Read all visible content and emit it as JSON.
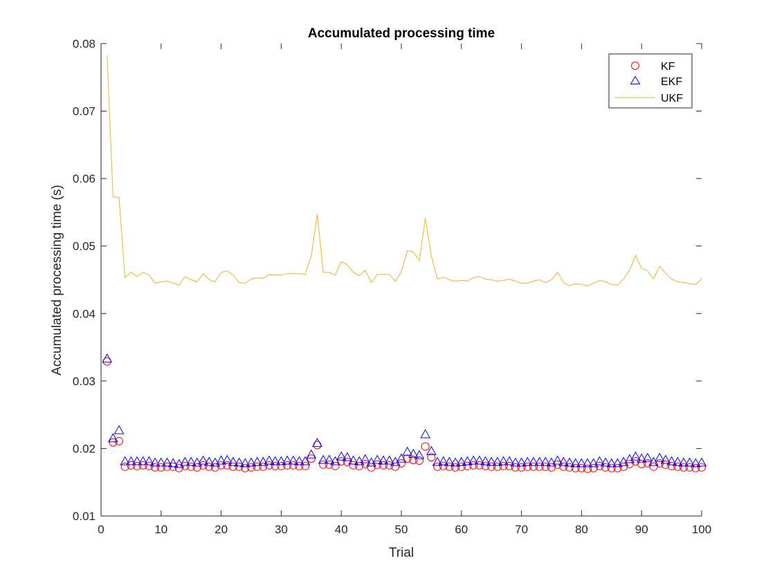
{
  "chart_data": {
    "type": "scatter",
    "title": "Accumulated processing time",
    "xlabel": "Trial",
    "ylabel": "Accumulated processing time (s)",
    "xlim": [
      0,
      100
    ],
    "ylim": [
      0.01,
      0.08
    ],
    "xticks": [
      "0",
      "10",
      "20",
      "30",
      "40",
      "50",
      "60",
      "70",
      "80",
      "90",
      "100"
    ],
    "yticks": [
      "0.01",
      "0.02",
      "0.03",
      "0.04",
      "0.05",
      "0.06",
      "0.07",
      "0.08"
    ],
    "grid": false,
    "legend_position": "top-right",
    "x": [
      1,
      2,
      3,
      4,
      5,
      6,
      7,
      8,
      9,
      10,
      11,
      12,
      13,
      14,
      15,
      16,
      17,
      18,
      19,
      20,
      21,
      22,
      23,
      24,
      25,
      26,
      27,
      28,
      29,
      30,
      31,
      32,
      33,
      34,
      35,
      36,
      37,
      38,
      39,
      40,
      41,
      42,
      43,
      44,
      45,
      46,
      47,
      48,
      49,
      50,
      51,
      52,
      53,
      54,
      55,
      56,
      57,
      58,
      59,
      60,
      61,
      62,
      63,
      64,
      65,
      66,
      67,
      68,
      69,
      70,
      71,
      72,
      73,
      74,
      75,
      76,
      77,
      78,
      79,
      80,
      81,
      82,
      83,
      84,
      85,
      86,
      87,
      88,
      89,
      90,
      91,
      92,
      93,
      94,
      95,
      96,
      97,
      98,
      99,
      100
    ],
    "series": [
      {
        "name": "KF",
        "marker": "circle",
        "color": "#ff0000",
        "values": [
          0.0329,
          0.0209,
          0.0211,
          0.0173,
          0.0175,
          0.0174,
          0.0175,
          0.0174,
          0.0172,
          0.0172,
          0.0173,
          0.0173,
          0.0171,
          0.0174,
          0.0173,
          0.0172,
          0.0175,
          0.0173,
          0.0172,
          0.0175,
          0.0175,
          0.0173,
          0.0173,
          0.0171,
          0.0172,
          0.0173,
          0.0173,
          0.0175,
          0.0174,
          0.0174,
          0.0175,
          0.0175,
          0.0174,
          0.0174,
          0.0185,
          0.0205,
          0.0176,
          0.0176,
          0.0174,
          0.0181,
          0.018,
          0.0175,
          0.0174,
          0.0177,
          0.0172,
          0.0176,
          0.0175,
          0.0175,
          0.0173,
          0.0178,
          0.0185,
          0.0183,
          0.0182,
          0.0203,
          0.0187,
          0.0173,
          0.0174,
          0.0173,
          0.0172,
          0.0173,
          0.0174,
          0.0175,
          0.0175,
          0.0174,
          0.0173,
          0.0173,
          0.0174,
          0.0174,
          0.0172,
          0.0172,
          0.0173,
          0.0173,
          0.0173,
          0.0173,
          0.0172,
          0.0176,
          0.0173,
          0.0172,
          0.0171,
          0.0171,
          0.017,
          0.0171,
          0.0174,
          0.0172,
          0.0171,
          0.0171,
          0.0173,
          0.0177,
          0.0181,
          0.0177,
          0.0178,
          0.0173,
          0.0178,
          0.0176,
          0.0174,
          0.0173,
          0.0172,
          0.0172,
          0.0171,
          0.0172
        ]
      },
      {
        "name": "EKF",
        "marker": "triangle",
        "color": "#0000ff",
        "values": [
          0.0333,
          0.0215,
          0.0227,
          0.0181,
          0.0181,
          0.0181,
          0.0181,
          0.0181,
          0.0179,
          0.0179,
          0.0179,
          0.0178,
          0.0177,
          0.018,
          0.018,
          0.0179,
          0.0182,
          0.018,
          0.0179,
          0.0182,
          0.0183,
          0.018,
          0.0179,
          0.0178,
          0.0179,
          0.018,
          0.018,
          0.0182,
          0.0181,
          0.0181,
          0.0182,
          0.0182,
          0.0181,
          0.0181,
          0.0191,
          0.0208,
          0.0183,
          0.0183,
          0.0181,
          0.0188,
          0.0187,
          0.0182,
          0.0181,
          0.0184,
          0.0179,
          0.0183,
          0.0182,
          0.0182,
          0.018,
          0.0185,
          0.0195,
          0.0192,
          0.019,
          0.0221,
          0.0196,
          0.018,
          0.0181,
          0.018,
          0.0179,
          0.018,
          0.0181,
          0.0182,
          0.0182,
          0.0181,
          0.018,
          0.018,
          0.0181,
          0.0181,
          0.0179,
          0.0179,
          0.018,
          0.018,
          0.018,
          0.018,
          0.0179,
          0.0182,
          0.018,
          0.0179,
          0.0178,
          0.0178,
          0.0178,
          0.0178,
          0.0181,
          0.0179,
          0.0178,
          0.0178,
          0.018,
          0.0184,
          0.0188,
          0.0185,
          0.0186,
          0.018,
          0.0186,
          0.0183,
          0.0181,
          0.018,
          0.0179,
          0.0179,
          0.0178,
          0.0179
        ]
      },
      {
        "name": "UKF",
        "marker": "line",
        "color": "#EDB120",
        "values": [
          0.0783,
          0.0573,
          0.0572,
          0.0453,
          0.0461,
          0.0455,
          0.0461,
          0.0457,
          0.0445,
          0.0447,
          0.0448,
          0.0445,
          0.0442,
          0.0455,
          0.045,
          0.0447,
          0.0459,
          0.045,
          0.0447,
          0.0461,
          0.0463,
          0.0457,
          0.0446,
          0.0445,
          0.0451,
          0.0453,
          0.0452,
          0.0458,
          0.0457,
          0.0457,
          0.0459,
          0.0459,
          0.0459,
          0.0458,
          0.0485,
          0.0547,
          0.0461,
          0.0461,
          0.0457,
          0.0477,
          0.0472,
          0.0461,
          0.0456,
          0.0464,
          0.0446,
          0.0458,
          0.0458,
          0.0458,
          0.0448,
          0.0462,
          0.0493,
          0.0491,
          0.0478,
          0.0541,
          0.0485,
          0.0451,
          0.0454,
          0.045,
          0.0448,
          0.0449,
          0.0448,
          0.0453,
          0.0455,
          0.0451,
          0.045,
          0.0448,
          0.0449,
          0.0451,
          0.0448,
          0.0445,
          0.0445,
          0.0448,
          0.045,
          0.0446,
          0.045,
          0.0461,
          0.0446,
          0.0441,
          0.0444,
          0.0443,
          0.0441,
          0.0445,
          0.0449,
          0.0447,
          0.0443,
          0.0442,
          0.0451,
          0.0464,
          0.0486,
          0.0467,
          0.0463,
          0.0451,
          0.047,
          0.046,
          0.0451,
          0.0447,
          0.0446,
          0.0444,
          0.0443,
          0.0451
        ]
      }
    ]
  }
}
